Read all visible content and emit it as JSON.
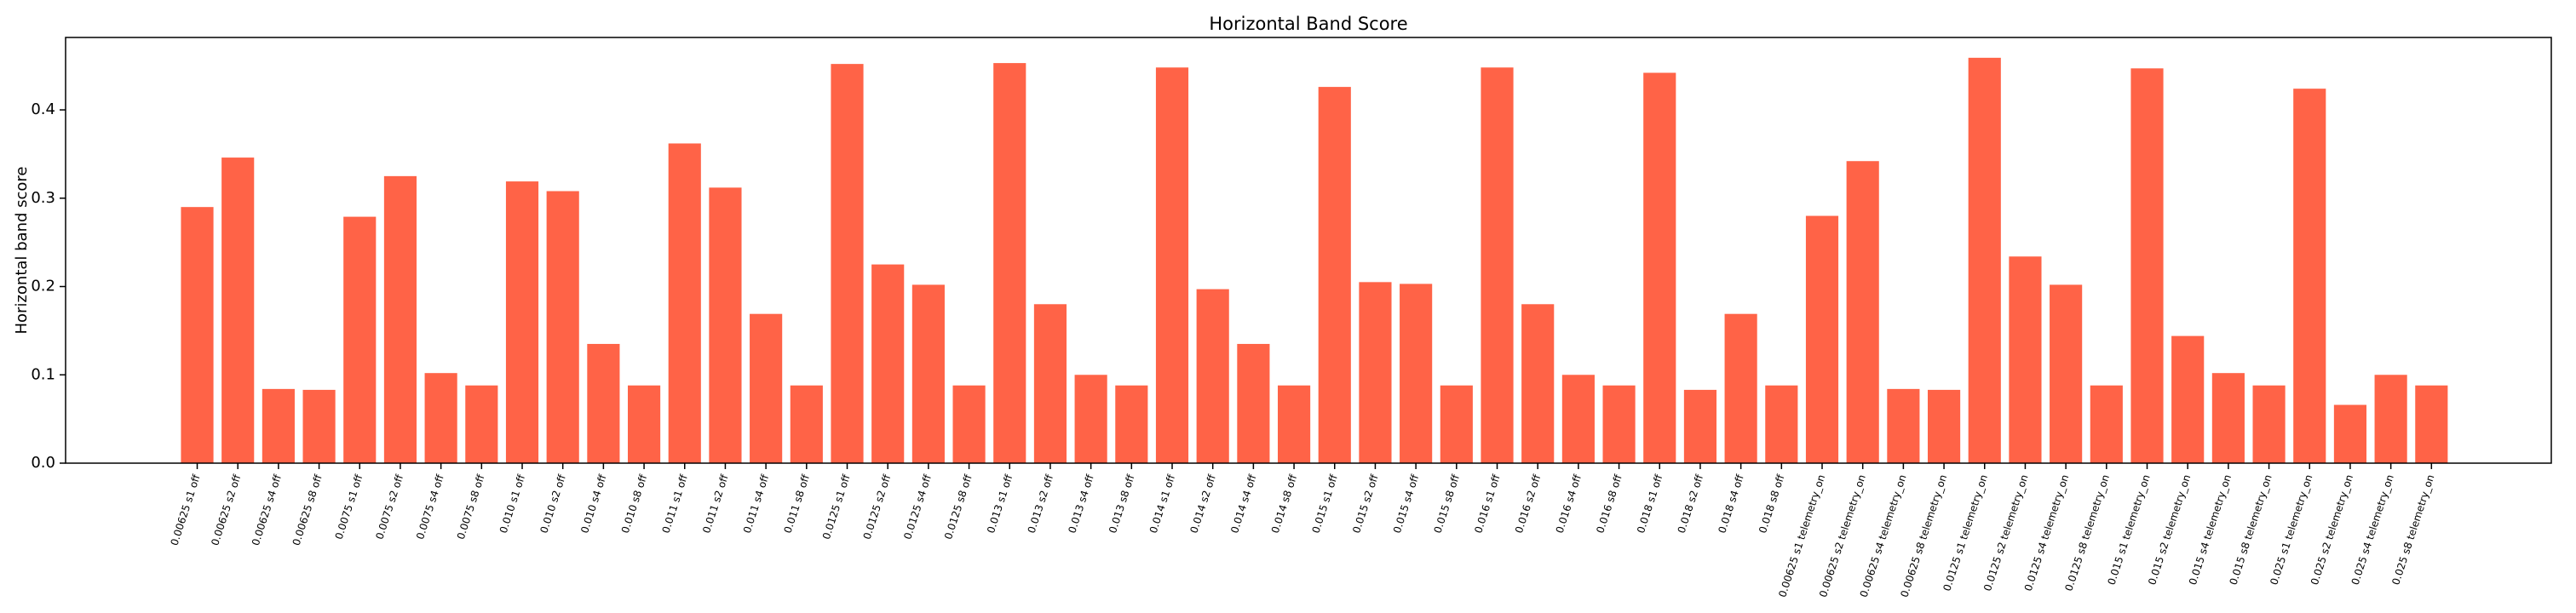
{
  "chart_data": {
    "type": "bar",
    "title": "Horizontal Band Score",
    "y_label": "Horizontal band score",
    "categories": [
      "0.00625 s1 off",
      "0.00625 s2 off",
      "0.00625 s4 off",
      "0.00625 s8 off",
      "0.0075 s1 off",
      "0.0075 s2 off",
      "0.0075 s4 off",
      "0.0075 s8 off",
      "0.010 s1 off",
      "0.010 s2 off",
      "0.010 s4 off",
      "0.010 s8 off",
      "0.011 s1 off",
      "0.011 s2 off",
      "0.011 s4 off",
      "0.011 s8 off",
      "0.0125 s1 off",
      "0.0125 s2 off",
      "0.0125 s4 off",
      "0.0125 s8 off",
      "0.013 s1 off",
      "0.013 s2 off",
      "0.013 s4 off",
      "0.013 s8 off",
      "0.014 s1 off",
      "0.014 s2 off",
      "0.014 s4 off",
      "0.014 s8 off",
      "0.015 s1 off",
      "0.015 s2 off",
      "0.015 s4 off",
      "0.015 s8 off",
      "0.016 s1 off",
      "0.016 s2 off",
      "0.016 s4 off",
      "0.016 s8 off",
      "0.018 s1 off",
      "0.018 s2 off",
      "0.018 s4 off",
      "0.018 s8 off",
      "0.00625 s1 telemetry_on",
      "0.00625 s2 telemetry_on",
      "0.00625 s4 telemetry_on",
      "0.00625 s8 telemetry_on",
      "0.0125 s1 telemetry_on",
      "0.0125 s2 telemetry_on",
      "0.0125 s4 telemetry_on",
      "0.0125 s8 telemetry_on",
      "0.015 s1 telemetry_on",
      "0.015 s2 telemetry_on",
      "0.015 s4 telemetry_on",
      "0.015 s8 telemetry_on",
      "0.025 s1 telemetry_on",
      "0.025 s2 telemetry_on",
      "0.025 s4 telemetry_on",
      "0.025 s8 telemetry_on"
    ],
    "values": [
      0.29,
      0.346,
      0.084,
      0.083,
      0.279,
      0.325,
      0.102,
      0.088,
      0.319,
      0.308,
      0.135,
      0.088,
      0.362,
      0.312,
      0.169,
      0.088,
      0.452,
      0.225,
      0.202,
      0.088,
      0.453,
      0.18,
      0.1,
      0.088,
      0.448,
      0.197,
      0.135,
      0.088,
      0.426,
      0.205,
      0.203,
      0.088,
      0.448,
      0.18,
      0.1,
      0.088,
      0.442,
      0.083,
      0.169,
      0.088,
      0.28,
      0.342,
      0.084,
      0.083,
      0.459,
      0.234,
      0.202,
      0.088,
      0.447,
      0.144,
      0.102,
      0.088,
      0.424,
      0.066,
      0.1,
      0.088
    ],
    "color": "#ff6347",
    "ylim": [
      0,
      0.482
    ],
    "yticks": [
      {
        "value": 0,
        "label": "0.0"
      },
      0.1,
      0.2,
      0.3,
      0.4
    ],
    "grid": false
  }
}
